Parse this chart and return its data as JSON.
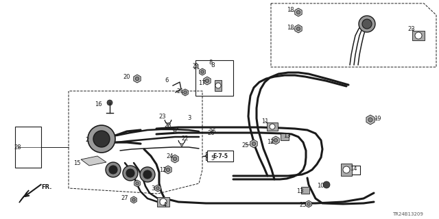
{
  "part_number": "TR24B13209",
  "background_color": "#ffffff",
  "line_color": "#1a1a1a",
  "label_color": "#1a1a1a",
  "box_label": "E-7-5",
  "figsize": [
    6.4,
    3.2
  ],
  "dpi": 100,
  "cable_color": "#111111",
  "component_fill": "#888888",
  "component_dark": "#222222"
}
